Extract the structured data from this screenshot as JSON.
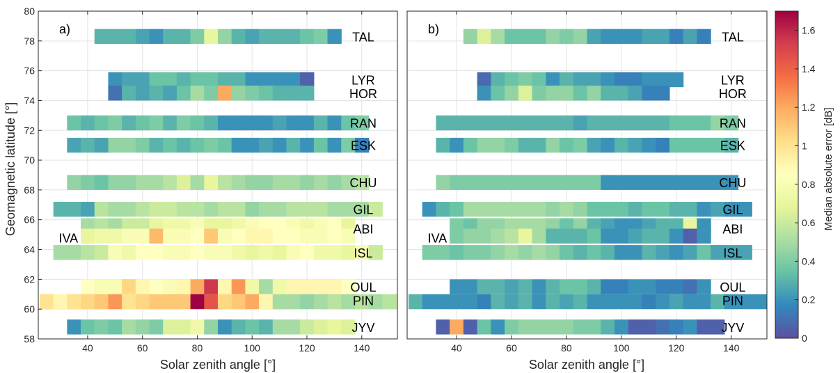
{
  "chart_data": {
    "type": "heatmap",
    "ylabel": "Geomagnetic latitude [°]",
    "xlabel": "Solar zenith angle [°]",
    "xlim": [
      22,
      153
    ],
    "ylim": [
      58,
      80
    ],
    "xticks": [
      "40",
      "60",
      "80",
      "100",
      "120",
      "140"
    ],
    "yticks": [
      "58",
      "60",
      "62",
      "64",
      "66",
      "68",
      "70",
      "72",
      "74",
      "76",
      "78",
      "80"
    ],
    "colorbar": {
      "label": "Median absolute error [dB]",
      "range": [
        0,
        1.7
      ],
      "ticks": [
        "0",
        "0.2",
        "0.4",
        "0.6",
        "0.8",
        "1",
        "1.2",
        "1.4",
        "1.6"
      ],
      "colormap": "spectral_reversed"
    },
    "bin_width_deg": 5,
    "rows": [
      {
        "station": "TAL",
        "lat": 78.3,
        "start": 42.5
      },
      {
        "station": "LYR",
        "lat": 75.4,
        "start": 47.5
      },
      {
        "station": "HOR",
        "lat": 74.5,
        "start": 47.5
      },
      {
        "station": "RAN",
        "lat": 72.5,
        "start": 32.5
      },
      {
        "station": "ESK",
        "lat": 71.0,
        "start": 32.5
      },
      {
        "station": "CHU",
        "lat": 68.5,
        "start": 32.5
      },
      {
        "station": "GIL",
        "lat": 66.7,
        "start": 27.5
      },
      {
        "station": "ABI",
        "lat": 65.6,
        "start": 37.5,
        "label_lat": 65.4
      },
      {
        "station": "ABI2",
        "lat": 64.9,
        "start": 37.5,
        "label": false
      },
      {
        "station": "ISL",
        "lat": 63.8,
        "start": 27.5
      },
      {
        "station": "OUL",
        "lat": 61.5,
        "start": 37.5
      },
      {
        "station": "PIN",
        "lat": 60.5,
        "start": 22.5,
        "label_lat": 60.6
      },
      {
        "station": "JYV",
        "lat": 58.8,
        "start": 32.5
      }
    ],
    "extra_labels": [
      {
        "text": "IVA",
        "lat": 64.8,
        "x": 33
      }
    ],
    "panels": [
      {
        "label": "a)",
        "values": {
          "TAL": [
            0.3,
            0.3,
            0.3,
            0.25,
            0.2,
            0.3,
            0.3,
            0.4,
            0.7,
            0.45,
            0.3,
            0.25,
            0.3,
            0.3,
            0.3,
            0.35,
            0.4,
            0.2
          ],
          "LYR": [
            0.2,
            0.25,
            0.25,
            0.35,
            0.35,
            0.3,
            0.35,
            0.35,
            0.3,
            0.3,
            0.2,
            0.2,
            0.2,
            0.2,
            0.05
          ],
          "HOR": [
            0.1,
            0.3,
            0.25,
            0.3,
            0.25,
            0.35,
            0.5,
            0.4,
            1.2,
            0.45,
            0.4,
            0.35,
            0.3,
            0.3,
            0.3
          ],
          "RAN": [
            0.35,
            0.3,
            0.35,
            0.4,
            0.3,
            0.35,
            0.4,
            0.3,
            0.4,
            0.35,
            0.3,
            0.2,
            0.2,
            0.2,
            0.2,
            0.25,
            0.2,
            0.2,
            0.3,
            0.2,
            0.35,
            0.4
          ],
          "ESK": [
            0.25,
            0.3,
            0.25,
            0.45,
            0.45,
            0.4,
            0.3,
            0.35,
            0.3,
            0.35,
            0.4,
            0.35,
            0.2,
            0.2,
            0.25,
            0.2,
            0.3,
            0.2,
            0.35,
            0.2,
            0.4,
            0.15
          ],
          "CHU": [
            0.45,
            0.4,
            0.35,
            0.45,
            0.45,
            0.5,
            0.5,
            0.55,
            0.65,
            0.5,
            0.7,
            0.55,
            0.5,
            0.45,
            0.45,
            0.5,
            0.5,
            0.45,
            0.5,
            0.45,
            0.5,
            0.55
          ],
          "GIL": [
            0.3,
            0.3,
            0.25,
            0.55,
            0.5,
            0.5,
            0.55,
            0.6,
            0.6,
            0.55,
            0.55,
            0.5,
            0.55,
            0.55,
            0.45,
            0.5,
            0.5,
            0.55,
            0.55,
            0.55,
            0.5,
            0.5,
            0.5,
            0.6
          ],
          "ABI": [
            0.5,
            0.55,
            0.5,
            0.6,
            0.6,
            0.7,
            0.75,
            0.75,
            0.8,
            0.7,
            0.7,
            0.75,
            0.8,
            0.85,
            0.85,
            0.8,
            0.75,
            0.8,
            0.85,
            0.7
          ],
          "ABI2": [
            0.7,
            0.75,
            0.75,
            0.8,
            0.8,
            1.15,
            0.8,
            0.8,
            0.85,
            1.1,
            0.8,
            0.85,
            0.9,
            0.9,
            0.85,
            0.85,
            0.8,
            0.8,
            0.85,
            0.8
          ],
          "ISL": [
            0.5,
            0.5,
            0.55,
            0.6,
            0.8,
            0.75,
            0.85,
            0.85,
            0.8,
            0.8,
            0.85,
            0.8,
            0.8,
            0.75,
            0.7,
            0.75,
            0.7,
            0.8,
            0.85,
            0.75,
            0.75,
            0.7,
            0.8,
            0.6
          ],
          "OUL": [
            0.85,
            0.8,
            0.8,
            1.05,
            0.9,
            0.85,
            0.8,
            0.9,
            1.2,
            1.55,
            0.9,
            1.25,
            0.75,
            0.5,
            0.75,
            0.9,
            0.9,
            0.9,
            0.9,
            0.85
          ],
          "PIN": [
            1.0,
            0.9,
            1.0,
            1.05,
            1.1,
            1.25,
            1.0,
            1.05,
            1.1,
            1.1,
            1.1,
            1.7,
            1.45,
            1.05,
            1.1,
            1.2,
            0.9,
            0.5,
            0.5,
            0.45,
            0.5,
            0.55,
            0.5,
            0.55,
            0.5,
            0.55,
            0.6,
            0.5,
            0.2
          ],
          "JYV": [
            0.2,
            0.35,
            0.4,
            0.35,
            0.5,
            0.45,
            0.4,
            0.65,
            0.65,
            0.75,
            0.45,
            0.2,
            0.3,
            0.35,
            0.3,
            0.5,
            0.5,
            0.6,
            0.65,
            0.7,
            0.65
          ]
        }
      },
      {
        "label": "b)",
        "values": {
          "TAL": [
            0.45,
            0.65,
            0.5,
            0.35,
            0.35,
            0.35,
            0.45,
            0.4,
            0.45,
            0.25,
            0.2,
            0.2,
            0.2,
            0.25,
            0.25,
            0.15,
            0.25,
            0.15
          ],
          "LYR": [
            0.08,
            0.3,
            0.35,
            0.4,
            0.35,
            0.2,
            0.3,
            0.25,
            0.25,
            0.2,
            0.15,
            0.15,
            0.2,
            0.2,
            0.2
          ],
          "HOR": [
            0.2,
            0.35,
            0.45,
            0.65,
            0.4,
            0.45,
            0.45,
            0.35,
            0.45,
            0.3,
            0.3,
            0.25,
            0.15,
            0.15
          ],
          "RAN": [
            0.3,
            0.3,
            0.3,
            0.3,
            0.3,
            0.3,
            0.3,
            0.3,
            0.3,
            0.3,
            0.25,
            0.3,
            0.3,
            0.3,
            0.3,
            0.3,
            0.3,
            0.35,
            0.35,
            0.35,
            0.45,
            0.4
          ],
          "ESK": [
            0.3,
            0.2,
            0.35,
            0.45,
            0.45,
            0.4,
            0.3,
            0.3,
            0.45,
            0.35,
            0.4,
            0.25,
            0.2,
            0.3,
            0.25,
            0.2,
            0.15,
            0.35,
            0.35,
            0.35,
            0.35,
            0.3
          ],
          "CHU": [
            0.45,
            0.4,
            0.4,
            0.4,
            0.4,
            0.4,
            0.4,
            0.4,
            0.4,
            0.4,
            0.4,
            0.4,
            0.2,
            0.2,
            0.2,
            0.2,
            0.2,
            0.2,
            0.2,
            0.2,
            0.2,
            0.2
          ],
          "GIL": [
            0.2,
            0.3,
            0.35,
            0.5,
            0.5,
            0.5,
            0.5,
            0.5,
            0.5,
            0.45,
            0.5,
            0.45,
            0.35,
            0.35,
            0.35,
            0.3,
            0.35,
            0.35,
            0.3,
            0.3,
            0.2,
            0.25,
            0.2,
            0.2
          ],
          "ABI": [
            0.4,
            0.35,
            0.45,
            0.45,
            0.5,
            0.5,
            0.5,
            0.45,
            0.35,
            0.45,
            0.3,
            0.25,
            0.2,
            0.2,
            0.25,
            0.3,
            0.3,
            0.7,
            0.2
          ],
          "ABI2": [
            0.4,
            0.45,
            0.45,
            0.5,
            0.55,
            0.7,
            0.5,
            0.3,
            0.3,
            0.3,
            0.35,
            0.2,
            0.2,
            0.25,
            0.3,
            0.3,
            0.2,
            0.05,
            0.2
          ],
          "ISL": [
            0.4,
            0.4,
            0.35,
            0.4,
            0.4,
            0.45,
            0.5,
            0.45,
            0.5,
            0.45,
            0.35,
            0.3,
            0.35,
            0.3,
            0.2,
            0.2,
            0.3,
            0.25,
            0.2,
            0.25,
            0.35,
            0.25,
            0.25,
            0.25
          ],
          "OUL": [
            0.2,
            0.2,
            0.3,
            0.3,
            0.25,
            0.3,
            0.2,
            0.3,
            0.35,
            0.35,
            0.3,
            0.15,
            0.15,
            0.2,
            0.2,
            0.15,
            0.15,
            0.1,
            0.2
          ],
          "PIN": [
            0.3,
            0.2,
            0.2,
            0.2,
            0.2,
            0.15,
            0.3,
            0.25,
            0.3,
            0.2,
            0.3,
            0.25,
            0.3,
            0.2,
            0.2,
            0.2,
            0.2,
            0.15,
            0.2,
            0.25,
            0.2,
            0.2,
            0.3,
            0.2,
            0.2,
            0.2,
            0.2,
            0.2,
            0.2,
            0.2
          ],
          "JYV": [
            0.05,
            1.2,
            0.05,
            0.35,
            0.2,
            0.4,
            0.45,
            0.45,
            0.45,
            0.45,
            0.4,
            0.4,
            0.3,
            0.2,
            0.05,
            0.05,
            0.1,
            0.15,
            0.2,
            0.05,
            0.05
          ]
        }
      }
    ]
  }
}
